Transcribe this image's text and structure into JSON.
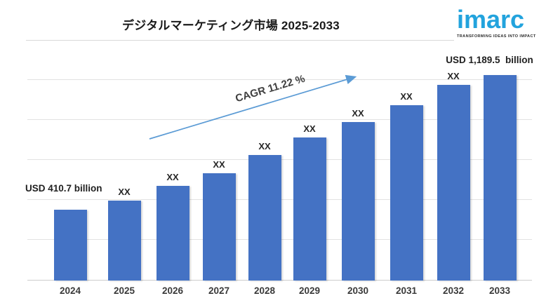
{
  "header": {
    "title": "デジタルマーケティング市場 2025-2033"
  },
  "logo": {
    "brand": "imarc",
    "tagline": "TRANSFORMING IDEAS INTO IMPACT",
    "brand_color": "#22a3dd"
  },
  "annotations": {
    "cagr_label": "CAGR 11.22 %",
    "start_value_label": "USD 410.7 billion",
    "end_value_label": "USD 1,189.5  billion"
  },
  "chart_data": {
    "type": "bar",
    "title": "デジタルマーケティング市場 2025-2033",
    "unit": "USD billion",
    "categories": [
      "2024",
      "2025",
      "2026",
      "2027",
      "2028",
      "2029",
      "2030",
      "2031",
      "2032",
      "2033"
    ],
    "values_usd_billion_est": [
      410.7,
      464,
      550,
      620,
      727,
      830,
      920,
      1018,
      1133,
      1189.5
    ],
    "bar_labels": [
      "",
      "XX",
      "XX",
      "XX",
      "XX",
      "XX",
      "XX",
      "XX",
      "XX",
      ""
    ],
    "known_values": {
      "2024": "USD 410.7 billion",
      "2033": "USD 1,189.5 billion"
    },
    "cagr": "11.22 %",
    "bar_color": "#4472c4",
    "arrow_color": "#5b9bd5",
    "gridlines": true,
    "legend": false,
    "xlabel": "",
    "ylabel": ""
  }
}
